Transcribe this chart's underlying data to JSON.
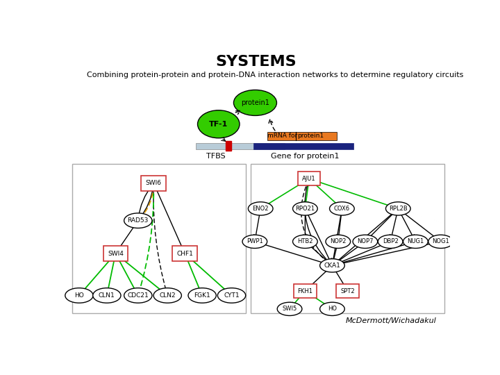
{
  "title": "SYSTEMS",
  "subtitle": "Combining protein-protein and protein-DNA interaction networks to determine regulatory circuits",
  "credit": "McDermott/Wichadakul",
  "bg_color": "#ffffff",
  "title_fontsize": 16,
  "subtitle_fontsize": 8,
  "credit_fontsize": 8
}
